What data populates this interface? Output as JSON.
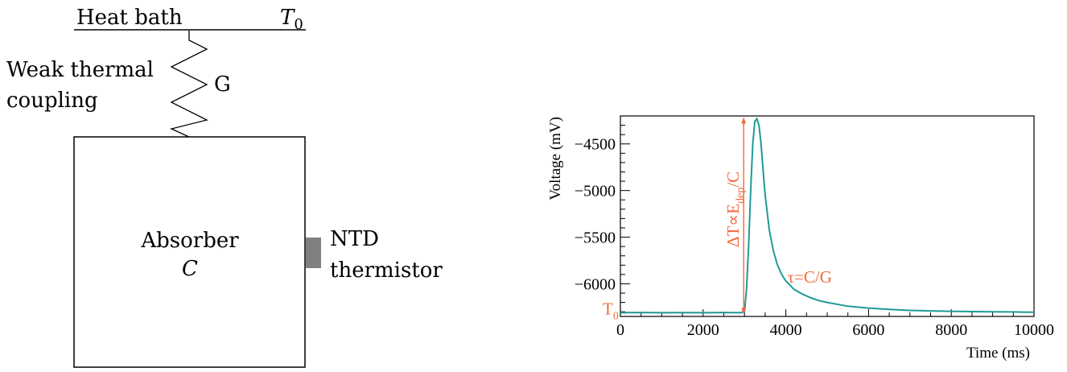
{
  "diagram": {
    "heat_bath_label": "Heat bath",
    "bath_temp_symbol": "T",
    "bath_temp_subscript": "0",
    "coupling_label_line1": "Weak thermal",
    "coupling_label_line2": "coupling",
    "conductance_label": "G",
    "absorber_label": "Absorber",
    "absorber_heat_capacity": "C",
    "sensor_label_line1": "NTD",
    "sensor_label_line2": "thermistor",
    "sensor_color": "#808080"
  },
  "chart_data": {
    "type": "line",
    "title": "",
    "xlabel": "Time (ms)",
    "ylabel": "Voltage (mV)",
    "xlim": [
      0,
      10000
    ],
    "ylim": [
      -6350,
      -4200
    ],
    "x_ticks": [
      0,
      2000,
      4000,
      6000,
      8000,
      10000
    ],
    "x_tick_labels": [
      "0",
      "2000",
      "4000",
      "6000",
      "8000",
      "10000"
    ],
    "y_ticks": [
      -4500,
      -5000,
      -5500,
      -6000
    ],
    "y_tick_labels": [
      "−4500",
      "−5000",
      "−5500",
      "−6000"
    ],
    "grid": false,
    "series": [
      {
        "color": "#1f9a96",
        "x": [
          0,
          500,
          1000,
          1500,
          2000,
          2500,
          2900,
          3000,
          3050,
          3100,
          3150,
          3200,
          3250,
          3300,
          3350,
          3400,
          3450,
          3500,
          3600,
          3700,
          3800,
          3900,
          4000,
          4200,
          4400,
          4600,
          4800,
          5000,
          5500,
          6000,
          6500,
          7000,
          7500,
          8000,
          8500,
          9000,
          9500,
          10000
        ],
        "y": [
          -6310,
          -6308,
          -6310,
          -6309,
          -6310,
          -6308,
          -6310,
          -6300,
          -6050,
          -5600,
          -5000,
          -4500,
          -4260,
          -4230,
          -4300,
          -4500,
          -4780,
          -5050,
          -5420,
          -5650,
          -5800,
          -5900,
          -5970,
          -6060,
          -6110,
          -6150,
          -6180,
          -6200,
          -6240,
          -6260,
          -6275,
          -6285,
          -6290,
          -6295,
          -6298,
          -6300,
          -6302,
          -6305
        ]
      }
    ],
    "annotations": {
      "baseline_symbol": "T",
      "baseline_subscript": "0",
      "amplitude_prefix": "ΔT∝E",
      "amplitude_subscript": "dep",
      "amplitude_suffix": "/C",
      "tau_label": "τ=C/G",
      "color": "#f26a3c",
      "amplitude_arrow": {
        "x": 3000,
        "y_from": -6310,
        "y_to": -4230
      },
      "tau_anchor": {
        "x": 4000,
        "y": -5970
      },
      "baseline_anchor": {
        "x": 0,
        "y": -6310
      }
    }
  }
}
